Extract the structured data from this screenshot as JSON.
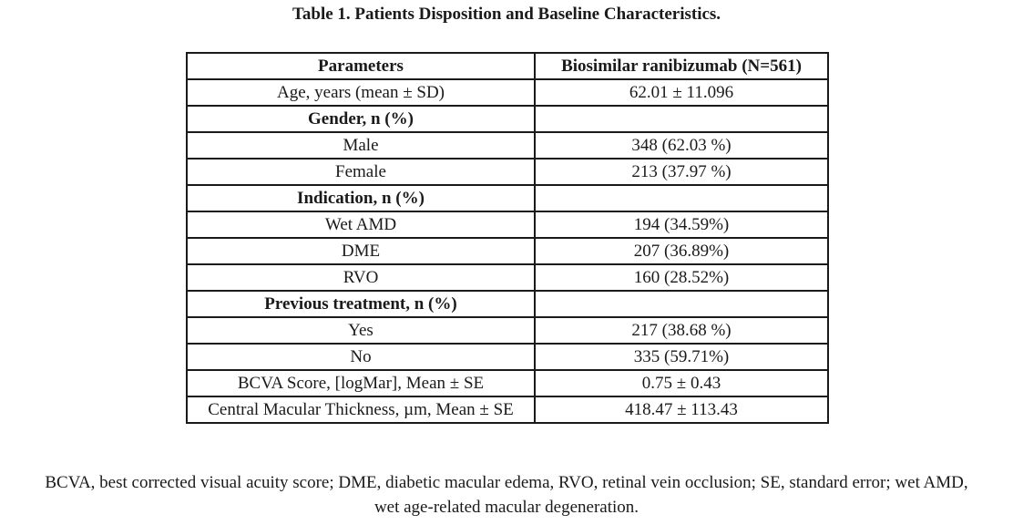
{
  "caption": "Table 1. Patients Disposition and Baseline Characteristics.",
  "table": {
    "headers": [
      "Parameters",
      "Biosimilar ranibizumab (N=561)"
    ],
    "rows": [
      {
        "label": "Age, years (mean ± SD)",
        "value": "62.01 ± 11.096",
        "section": false
      },
      {
        "label": "Gender, n (%)",
        "value": "",
        "section": true
      },
      {
        "label": "Male",
        "value": "348 (62.03 %)",
        "section": false
      },
      {
        "label": "Female",
        "value": "213 (37.97 %)",
        "section": false
      },
      {
        "label": "Indication, n (%)",
        "value": "",
        "section": true
      },
      {
        "label": "Wet AMD",
        "value": "194 (34.59%)",
        "section": false
      },
      {
        "label": "DME",
        "value": "207 (36.89%)",
        "section": false
      },
      {
        "label": "RVO",
        "value": "160 (28.52%)",
        "section": false
      },
      {
        "label": "Previous treatment, n (%)",
        "value": "",
        "section": true
      },
      {
        "label": "Yes",
        "value": "217 (38.68 %)",
        "section": false
      },
      {
        "label": "No",
        "value": "335 (59.71%)",
        "section": false
      },
      {
        "label": "BCVA Score, [logMar], Mean ± SE",
        "value": "0.75 ± 0.43",
        "section": false
      },
      {
        "label": "Central Macular Thickness, µm, Mean ± SE",
        "value": "418.47 ± 113.43",
        "section": false
      }
    ]
  },
  "footnote": {
    "line1": "BCVA, best corrected visual acuity score; DME, diabetic macular edema, RVO, retinal vein occlusion; SE, standard error; wet AMD,",
    "line2": "wet age-related macular degeneration."
  }
}
